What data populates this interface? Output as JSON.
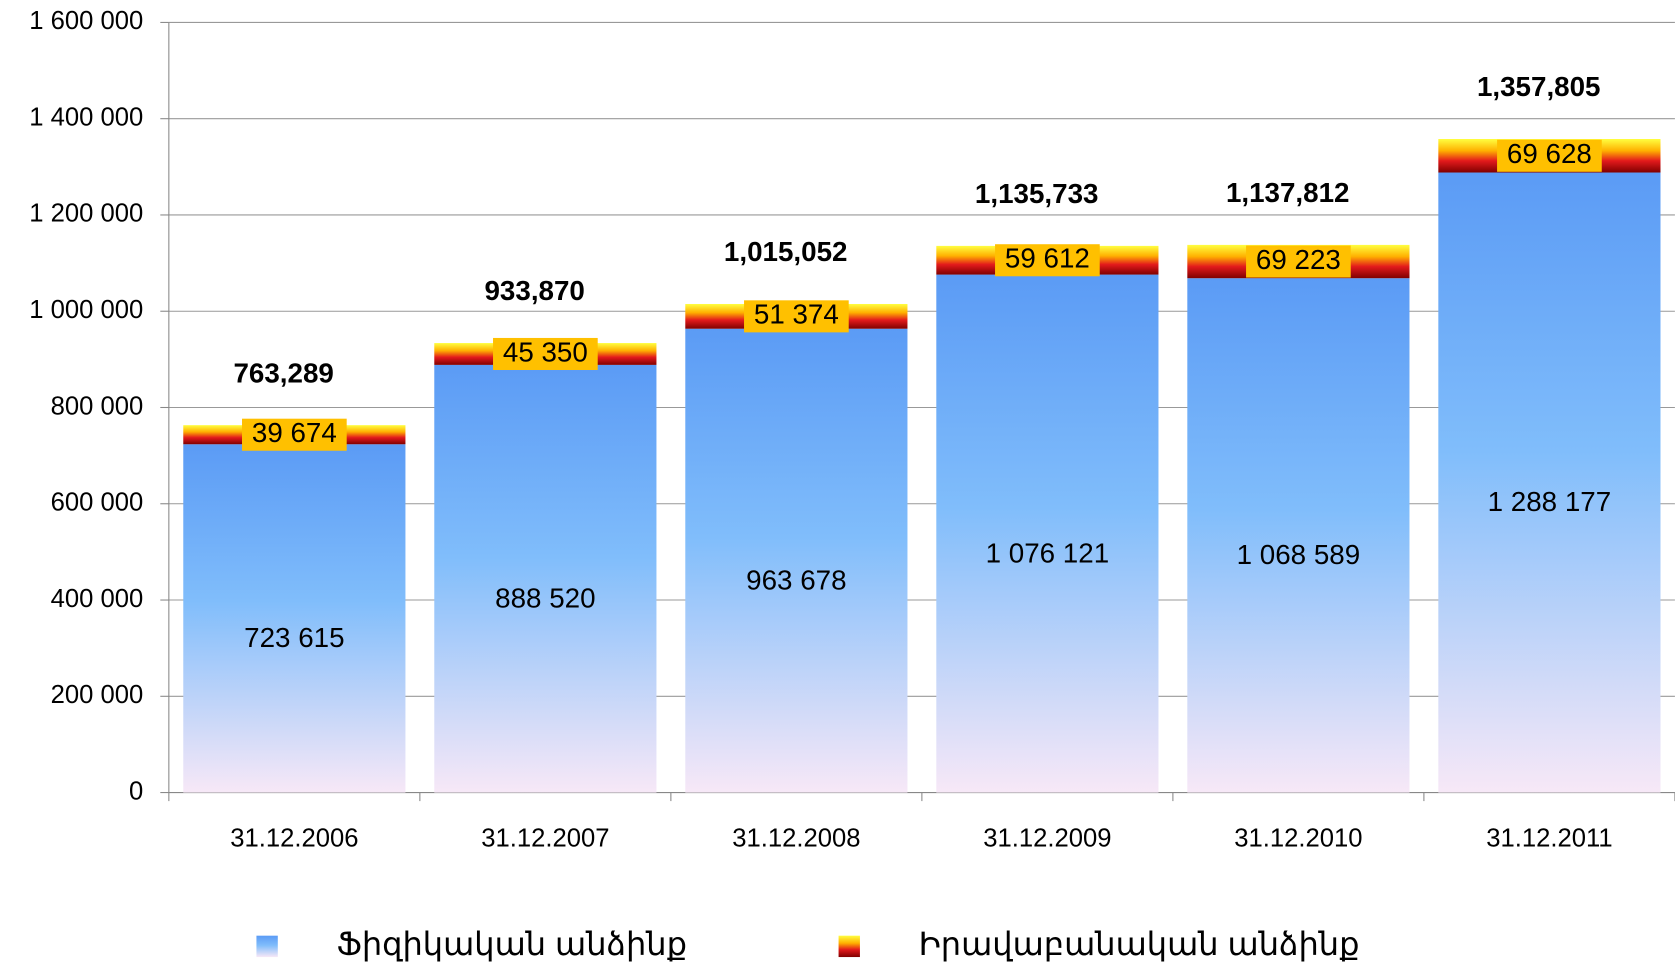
{
  "chart_data": {
    "type": "stacked-bar",
    "categories": [
      "31.12.2006",
      "31.12.2007",
      "31.12.2008",
      "31.12.2009",
      "31.12.2010",
      "31.12.2011"
    ],
    "series": [
      {
        "name": "Ֆիզիկական անձինք",
        "color": "#5b9bf5",
        "values": [
          723615,
          888520,
          963678,
          1076121,
          1068589,
          1288177
        ],
        "value_labels": [
          "723 615",
          "888 520",
          "963 678",
          "1 076 121",
          "1 068 589",
          "1 288 177"
        ]
      },
      {
        "name": "Իրավաբանական անձինք",
        "color": "#e31a1c",
        "values": [
          39674,
          45350,
          51374,
          59612,
          69223,
          69628
        ],
        "value_labels": [
          "39 674",
          "45 350",
          "51 374",
          "59 612",
          "69 223",
          "69 628"
        ]
      }
    ],
    "totals": [
      763289,
      933870,
      1015052,
      1135733,
      1137812,
      1357805
    ],
    "total_labels": [
      "763,289",
      "933,870",
      "1,015,052",
      "1,135,733",
      "1,137,812",
      "1,357,805"
    ],
    "ylim": [
      0,
      1600000
    ],
    "yticks": [
      0,
      {
        "value": 200000,
        "label": "200 000"
      },
      {
        "value": 400000,
        "label": "400 000"
      },
      {
        "value": 600000,
        "label": "600 000"
      },
      {
        "value": 800000,
        "label": "800 000"
      },
      {
        "value": 1000000,
        "label": "1 000 000"
      },
      {
        "value": 1200000,
        "label": "1 200 000"
      },
      {
        "value": 1400000,
        "label": "1 400 000"
      },
      {
        "value": 1600000,
        "label": "1 600 000"
      }
    ],
    "grid": true,
    "legend": "bottom"
  }
}
